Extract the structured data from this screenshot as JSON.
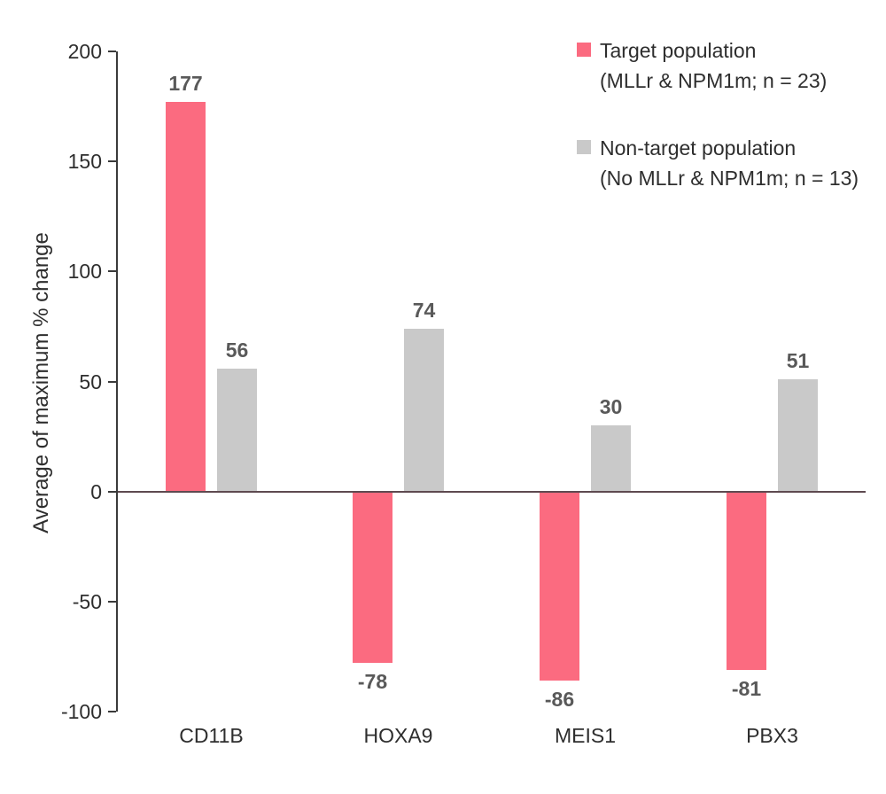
{
  "chart_data": {
    "type": "bar",
    "title": "",
    "categories": [
      "CD11B",
      "HOXA9",
      "MEIS1",
      "PBX3"
    ],
    "series": [
      {
        "key": "target",
        "name": "Target population (MLLr & NPM1m; n = 23)",
        "color": "#FB6B80",
        "values": [
          177,
          -78,
          -86,
          -81
        ]
      },
      {
        "key": "non-target",
        "name": "Non-target population (No MLLr & NPM1m; n = 13)",
        "color": "#C9C9C9",
        "values": [
          56,
          74,
          30,
          51
        ]
      }
    ],
    "xlabel": "",
    "ylabel": "Average of maximum % change",
    "ylim": [
      -100,
      200
    ],
    "yticks": [
      200,
      150,
      100,
      50,
      0,
      -50,
      -100
    ],
    "grid": false,
    "data_labels": true,
    "legend_position": "top-right",
    "legend": [
      {
        "label": "Target population",
        "sublabel": "(MLLr & NPM1m; n = 23)"
      },
      {
        "label": "Non-target population",
        "sublabel": "(No MLLr & NPM1m; n = 13)"
      }
    ],
    "colors": {
      "target_bar": "#FB6B80",
      "non_target_bar": "#C9C9C9",
      "data_label": "#595959",
      "axis_text": "#2e2e2e",
      "axis_line": "#3a3a3a",
      "zero_line": "#5E4A50",
      "background": "#ffffff"
    }
  }
}
